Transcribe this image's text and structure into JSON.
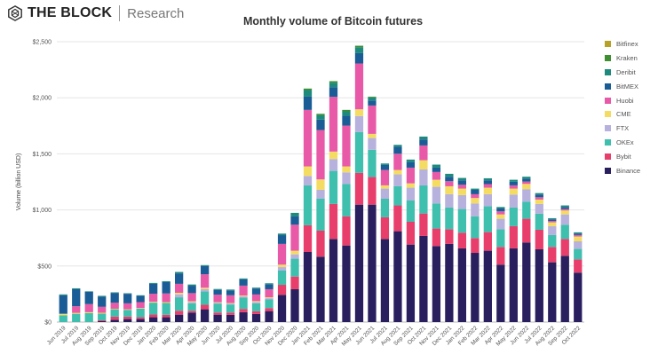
{
  "brand": {
    "name": "THE BLOCK",
    "sub": "Research"
  },
  "chart_data": {
    "type": "bar",
    "stacked": true,
    "title": "Monthly volume of Bitcoin futures",
    "xlabel": "",
    "ylabel": "Volume (billion USD)",
    "ylim": [
      0,
      2500
    ],
    "yticks": [
      0,
      500,
      1000,
      1500,
      2000,
      2500
    ],
    "ytick_labels": [
      "$0",
      "$500",
      "$1,000",
      "$1,500",
      "$2,000",
      "$2,500"
    ],
    "grid": true,
    "legend_position": "right",
    "categories": [
      "Jun 2019",
      "Jul 2019",
      "Aug 2019",
      "Sep 2019",
      "Oct 2019",
      "Nov 2019",
      "Dec 2019",
      "Jan 2020",
      "Feb 2020",
      "Mar 2020",
      "Apr 2020",
      "May 2020",
      "Jun 2020",
      "Jul 2020",
      "Aug 2020",
      "Sep 2020",
      "Oct 2020",
      "Nov 2020",
      "Dec 2020",
      "Jan 2021",
      "Feb 2021",
      "Mar 2021",
      "Apr 2021",
      "May 2021",
      "Jun 2021",
      "Jul 2021",
      "Aug 2021",
      "Sep 2021",
      "Oct 2021",
      "Nov 2021",
      "Dec 2021",
      "Jan 2022",
      "Feb 2022",
      "Mar 2022",
      "Apr 2022",
      "May 2022",
      "Jun 2022",
      "Jul 2022",
      "Aug 2022",
      "Sep 2022",
      "Oct 2022"
    ],
    "series": [
      {
        "name": "Binance",
        "color": "#2a1f5e",
        "values": [
          0,
          0,
          0,
          8,
          21,
          27,
          27,
          43,
          43,
          66,
          85,
          114,
          66,
          64,
          88,
          72,
          98,
          243,
          293,
          625,
          583,
          741,
          683,
          1047,
          1047,
          741,
          810,
          691,
          768,
          678,
          697,
          657,
          617,
          636,
          512,
          657,
          710,
          649,
          533,
          591,
          441
        ]
      },
      {
        "name": "Bybit",
        "color": "#e83e6c",
        "values": [
          0,
          0,
          0,
          8,
          27,
          21,
          16,
          24,
          21,
          35,
          16,
          40,
          19,
          21,
          29,
          24,
          27,
          89,
          113,
          238,
          232,
          312,
          259,
          283,
          246,
          193,
          230,
          203,
          200,
          156,
          131,
          140,
          132,
          166,
          158,
          198,
          211,
          174,
          137,
          150,
          118
        ]
      },
      {
        "name": "OKEx",
        "color": "#3fbfae",
        "values": [
          61,
          74,
          80,
          59,
          66,
          61,
          77,
          106,
          106,
          120,
          66,
          120,
          80,
          72,
          101,
          72,
          77,
          127,
          159,
          356,
          285,
          295,
          288,
          364,
          243,
          166,
          171,
          190,
          251,
          224,
          193,
          211,
          193,
          230,
          158,
          166,
          153,
          143,
          106,
          127,
          93
        ]
      },
      {
        "name": "FTX",
        "color": "#b7b1dd",
        "values": [
          0,
          0,
          0,
          0,
          0,
          0,
          0,
          0,
          0,
          27,
          11,
          19,
          8,
          8,
          11,
          11,
          11,
          31,
          39,
          84,
          79,
          106,
          105,
          143,
          105,
          90,
          106,
          114,
          142,
          148,
          119,
          124,
          116,
          108,
          93,
          116,
          111,
          87,
          79,
          92,
          68
        ]
      },
      {
        "name": "CME",
        "color": "#f4dc62",
        "values": [
          13,
          8,
          8,
          8,
          5,
          5,
          5,
          8,
          8,
          13,
          8,
          13,
          5,
          5,
          8,
          8,
          8,
          22,
          32,
          85,
          93,
          66,
          53,
          60,
          37,
          29,
          39,
          39,
          82,
          63,
          71,
          58,
          48,
          58,
          39,
          53,
          47,
          39,
          34,
          35,
          43
        ]
      },
      {
        "name": "Huobi",
        "color": "#e85aa8",
        "values": [
          0,
          59,
          72,
          53,
          53,
          53,
          53,
          72,
          77,
          80,
          72,
          120,
          66,
          69,
          88,
          59,
          72,
          185,
          232,
          504,
          440,
          488,
          364,
          409,
          253,
          137,
          145,
          140,
          132,
          69,
          45,
          34,
          34,
          32,
          27,
          29,
          21,
          21,
          13,
          13,
          13
        ]
      },
      {
        "name": "BitMEX",
        "color": "#1a5c96",
        "values": [
          165,
          152,
          109,
          90,
          88,
          85,
          56,
          88,
          101,
          93,
          66,
          74,
          43,
          43,
          56,
          53,
          45,
          78,
          74,
          118,
          93,
          87,
          87,
          92,
          45,
          45,
          61,
          50,
          53,
          39,
          40,
          40,
          39,
          34,
          26,
          32,
          24,
          24,
          14,
          18,
          13
        ]
      },
      {
        "name": "Deribit",
        "color": "#1e8a7e",
        "values": [
          8,
          8,
          5,
          8,
          5,
          5,
          5,
          8,
          8,
          13,
          11,
          8,
          8,
          8,
          8,
          8,
          8,
          14,
          32,
          59,
          39,
          40,
          40,
          53,
          27,
          13,
          18,
          22,
          26,
          27,
          26,
          21,
          11,
          18,
          13,
          18,
          19,
          13,
          10,
          14,
          11
        ]
      },
      {
        "name": "Kraken",
        "color": "#3d8f2f",
        "values": [
          0,
          0,
          0,
          0,
          0,
          0,
          0,
          0,
          0,
          0,
          0,
          0,
          0,
          0,
          0,
          0,
          0,
          0,
          0,
          13,
          13,
          13,
          13,
          13,
          7,
          0,
          0,
          0,
          0,
          0,
          0,
          0,
          0,
          0,
          0,
          0,
          0,
          0,
          0,
          0,
          0
        ]
      },
      {
        "name": "Bitfinex",
        "color": "#b5a227",
        "values": [
          0,
          0,
          0,
          0,
          0,
          0,
          0,
          0,
          0,
          0,
          0,
          0,
          0,
          0,
          0,
          0,
          0,
          0,
          0,
          0,
          0,
          0,
          0,
          0,
          0,
          0,
          0,
          0,
          0,
          0,
          0,
          0,
          0,
          0,
          0,
          0,
          0,
          0,
          0,
          0,
          0
        ]
      }
    ],
    "legend_order": [
      "Bitfinex",
      "Kraken",
      "Deribit",
      "BitMEX",
      "Huobi",
      "CME",
      "FTX",
      "OKEx",
      "Bybit",
      "Binance"
    ]
  }
}
